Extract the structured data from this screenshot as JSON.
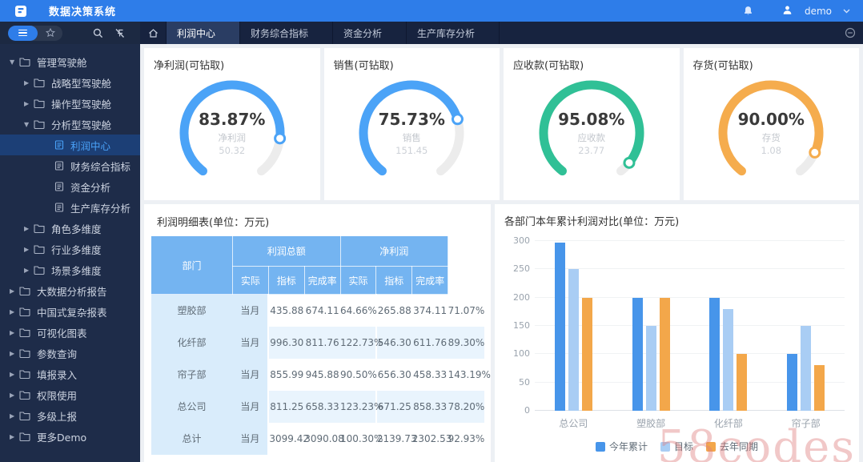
{
  "topbar": {
    "title": "数据决策系统",
    "user": "demo"
  },
  "tabbar": {
    "tabs": [
      {
        "label": "利润中心",
        "active": true
      },
      {
        "label": "财务综合指标",
        "active": false
      },
      {
        "label": "资金分析",
        "active": false
      },
      {
        "label": "生产库存分析",
        "active": false
      }
    ]
  },
  "sidebar": {
    "items": [
      {
        "label": "管理驾驶舱",
        "level": 1,
        "type": "folder",
        "caret": "down",
        "selected": false
      },
      {
        "label": "战略型驾驶舱",
        "level": 2,
        "type": "folder",
        "caret": "right",
        "selected": false
      },
      {
        "label": "操作型驾驶舱",
        "level": 2,
        "type": "folder",
        "caret": "right",
        "selected": false
      },
      {
        "label": "分析型驾驶舱",
        "level": 2,
        "type": "folder",
        "caret": "down",
        "selected": false
      },
      {
        "label": "利润中心",
        "level": 3,
        "type": "leaf",
        "caret": "none",
        "selected": true
      },
      {
        "label": "财务综合指标",
        "level": 3,
        "type": "leaf",
        "caret": "none",
        "selected": false
      },
      {
        "label": "资金分析",
        "level": 3,
        "type": "leaf",
        "caret": "none",
        "selected": false
      },
      {
        "label": "生产库存分析",
        "level": 3,
        "type": "leaf",
        "caret": "none",
        "selected": false
      },
      {
        "label": "角色多维度",
        "level": 2,
        "type": "folder",
        "caret": "right",
        "selected": false
      },
      {
        "label": "行业多维度",
        "level": 2,
        "type": "folder",
        "caret": "right",
        "selected": false
      },
      {
        "label": "场景多维度",
        "level": 2,
        "type": "folder",
        "caret": "right",
        "selected": false
      },
      {
        "label": "大数据分析报告",
        "level": 1,
        "type": "folder",
        "caret": "right",
        "selected": false
      },
      {
        "label": "中国式复杂报表",
        "level": 1,
        "type": "folder",
        "caret": "right",
        "selected": false
      },
      {
        "label": "可视化图表",
        "level": 1,
        "type": "folder",
        "caret": "right",
        "selected": false
      },
      {
        "label": "参数查询",
        "level": 1,
        "type": "folder",
        "caret": "right",
        "selected": false
      },
      {
        "label": "填报录入",
        "level": 1,
        "type": "folder",
        "caret": "right",
        "selected": false
      },
      {
        "label": "权限使用",
        "level": 1,
        "type": "folder",
        "caret": "right",
        "selected": false
      },
      {
        "label": "多级上报",
        "level": 1,
        "type": "folder",
        "caret": "right",
        "selected": false
      },
      {
        "label": "更多Demo",
        "level": 1,
        "type": "folder",
        "caret": "right",
        "selected": false
      }
    ]
  },
  "gauges": [
    {
      "title": "净利润(可钻取)",
      "percent": "83.87%",
      "value": 83.87,
      "label": "净利润",
      "amount": "50.32",
      "color": "#4ba3f7"
    },
    {
      "title": "销售(可钻取)",
      "percent": "75.73%",
      "value": 75.73,
      "label": "销售",
      "amount": "151.45",
      "color": "#4ba3f7"
    },
    {
      "title": "应收款(可钻取)",
      "percent": "95.08%",
      "value": 95.08,
      "label": "应收款",
      "amount": "23.77",
      "color": "#30c096"
    },
    {
      "title": "存货(可钻取)",
      "percent": "90.00%",
      "value": 90.0,
      "label": "存货",
      "amount": "1.08",
      "color": "#f5ac4d"
    }
  ],
  "table": {
    "title": "利润明细表(单位：万元)",
    "header": {
      "dept": "部门",
      "group1": "利润总额",
      "group2": "净利润",
      "sub": [
        "实际",
        "指标",
        "完成率",
        "实际",
        "指标",
        "完成率"
      ]
    },
    "rows": [
      {
        "dept": "塑胶部",
        "period": "当月",
        "values": [
          "435.88",
          "674.11",
          "64.66%",
          "265.88",
          "374.11",
          "71.07%"
        ]
      },
      {
        "dept": "化纤部",
        "period": "当月",
        "values": [
          "996.30",
          "811.76",
          "122.73%",
          "546.30",
          "611.76",
          "89.30%"
        ]
      },
      {
        "dept": "帘子部",
        "period": "当月",
        "values": [
          "855.99",
          "945.88",
          "90.50%",
          "656.30",
          "458.33",
          "143.19%"
        ]
      },
      {
        "dept": "总公司",
        "period": "当月",
        "values": [
          "811.25",
          "658.33",
          "123.23%",
          "671.25",
          "858.33",
          "78.20%"
        ]
      },
      {
        "dept": "总计",
        "period": "当月",
        "values": [
          "3099.42",
          "3090.08",
          "100.30%",
          "2139.73",
          "2302.53",
          "92.93%"
        ]
      }
    ],
    "pct_up_color": "#3ec9a8",
    "pct_down_color": "#f0907a"
  },
  "chart_data": {
    "type": "bar",
    "title": "各部门本年累计利润对比(单位：万元)",
    "categories": [
      "总公司",
      "塑胶部",
      "化纤部",
      "帘子部"
    ],
    "series": [
      {
        "name": "今年累计",
        "color": "#4795ea",
        "values": [
          297,
          200,
          200,
          100
        ]
      },
      {
        "name": "目标",
        "color": "#a9cdf4",
        "values": [
          250,
          150,
          180,
          150
        ]
      },
      {
        "name": "去年同期",
        "color": "#f3a74a",
        "values": [
          200,
          200,
          100,
          80
        ]
      }
    ],
    "xlabel": "",
    "ylabel": "",
    "ylim": [
      0,
      300
    ],
    "yticks": [
      0,
      50,
      100,
      150,
      200,
      250,
      300
    ],
    "grid": true,
    "legend_position": "bottom"
  },
  "watermark": "58codes",
  "colors": {
    "accent": "#2e7de9",
    "table_header": "#74b4f1",
    "sidebar_bg": "#1e2c49",
    "tab_bg": "#17233f"
  }
}
